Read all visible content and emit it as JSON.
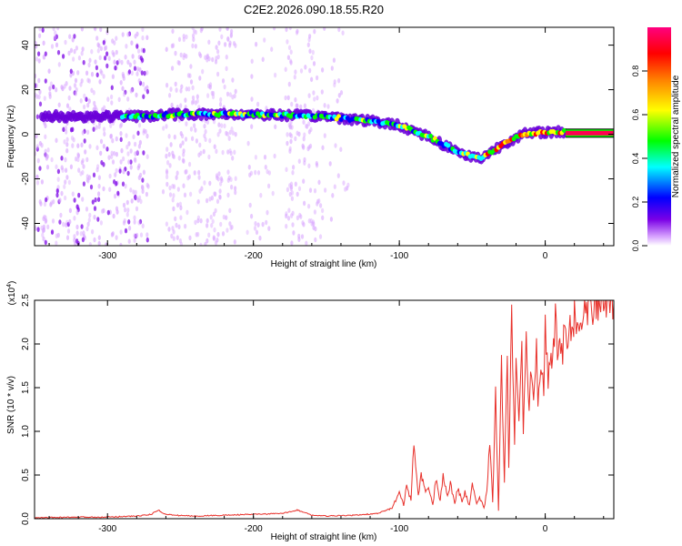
{
  "title": "C2E2.2026.090.18.55.R20",
  "chart_data": [
    {
      "type": "heatmap",
      "title": "",
      "xlabel": "Height of straight line (km)",
      "ylabel": "Frequency (Hz)",
      "xlim": [
        -350,
        47
      ],
      "ylim": [
        -50,
        48
      ],
      "xticks": [
        -300,
        -200,
        -100,
        0
      ],
      "yticks": [
        -40,
        -20,
        0,
        20,
        40
      ],
      "colorbar": {
        "label": "Normalized spectral amplitude",
        "range": [
          0,
          1
        ],
        "ticks": [
          "0.0",
          "0.2",
          "0.4",
          "0.6",
          "0.8"
        ],
        "colors": [
          "#ffffff",
          "#d9a6ff",
          "#7a00e6",
          "#0000ff",
          "#00ffff",
          "#00ff00",
          "#ffff00",
          "#ff8000",
          "#ff0000",
          "#ff0080"
        ]
      },
      "ridge": {
        "x": [
          -280,
          -250,
          -200,
          -150,
          -120,
          -100,
          -80,
          -60,
          -45,
          -35,
          -25,
          -15,
          0,
          15,
          47
        ],
        "y": [
          8,
          9,
          9,
          8,
          6,
          4,
          -1,
          -8,
          -11,
          -7,
          -3,
          0,
          1,
          1,
          0
        ]
      },
      "gaps_x": [
        [
          -272,
          -262
        ],
        [
          -212,
          -205
        ],
        [
          -185,
          -178
        ]
      ]
    },
    {
      "type": "line",
      "title": "",
      "xlabel": "Height of straight line (km)",
      "ylabel": "SNR (10 * v/v)",
      "exponent_label": "(x10",
      "exponent": "4",
      "exponent_close": ")",
      "xlim": [
        -350,
        47
      ],
      "ylim": [
        0,
        2.5
      ],
      "xticks": [
        -300,
        -200,
        -100,
        0
      ],
      "yticks": [
        "0.0",
        "0.5",
        "1.0",
        "1.5",
        "2.0",
        "2.5"
      ],
      "color": "#e8302a",
      "series": [
        {
          "name": "SNR",
          "x": [
            -350,
            -330,
            -300,
            -280,
            -270,
            -265,
            -262,
            -255,
            -240,
            -220,
            -200,
            -180,
            -170,
            -160,
            -150,
            -130,
            -115,
            -105,
            -100,
            -97,
            -95,
            -92,
            -90,
            -87,
            -85,
            -82,
            -80,
            -77,
            -75,
            -72,
            -70,
            -67,
            -65,
            -62,
            -60,
            -57,
            -55,
            -52,
            -50,
            -47,
            -45,
            -42,
            -40,
            -38,
            -36,
            -34,
            -32,
            -30,
            -28,
            -26,
            -25,
            -23,
            -21,
            -20,
            -18,
            -16,
            -15,
            -13,
            -11,
            -10,
            -8,
            -6,
            -5,
            -3,
            -1,
            0,
            2,
            4,
            5,
            7,
            9,
            10,
            12,
            14,
            15,
            17,
            19,
            20,
            22,
            24,
            25,
            27,
            29,
            30,
            32,
            35,
            38,
            40,
            43,
            45,
            47
          ],
          "y": [
            0.01,
            0.015,
            0.02,
            0.03,
            0.05,
            0.1,
            0.06,
            0.04,
            0.03,
            0.04,
            0.05,
            0.06,
            0.1,
            0.04,
            0.03,
            0.04,
            0.06,
            0.12,
            0.3,
            0.15,
            0.4,
            0.2,
            0.88,
            0.25,
            0.5,
            0.3,
            0.35,
            0.15,
            0.45,
            0.2,
            0.5,
            0.25,
            0.4,
            0.18,
            0.35,
            0.2,
            0.3,
            0.15,
            0.4,
            0.18,
            0.25,
            0.12,
            0.3,
            0.9,
            0.2,
            1.4,
            0.1,
            1.8,
            0.4,
            2.0,
            0.6,
            2.3,
            0.8,
            1.7,
            1.1,
            1.9,
            0.9,
            2.2,
            1.2,
            1.6,
            1.3,
            2.1,
            1.4,
            1.8,
            1.5,
            2.2,
            1.6,
            1.9,
            1.7,
            2.3,
            1.8,
            2.1,
            1.9,
            2.35,
            2.0,
            2.3,
            2.05,
            2.4,
            2.15,
            2.35,
            2.2,
            2.45,
            2.25,
            2.45,
            2.35,
            2.5,
            2.4,
            2.45,
            2.48,
            2.45,
            2.46
          ]
        }
      ]
    }
  ]
}
